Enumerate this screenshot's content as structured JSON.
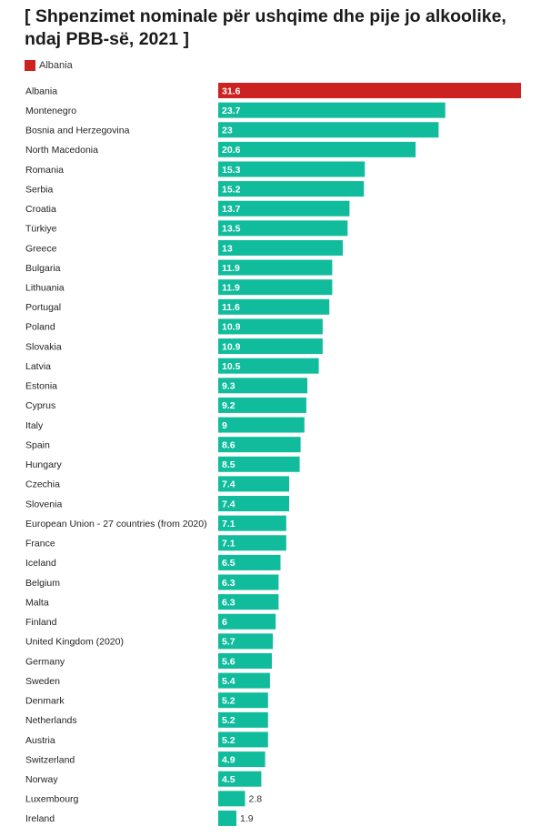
{
  "title": "[ Shpenzimet nominale për ushqime dhe pije jo alkoolike, ndaj PBB-së, 2021 ]",
  "legend": {
    "label": "Albania",
    "color": "#cc2222"
  },
  "colors": {
    "highlight": "#cc2222",
    "default": "#10bc9c"
  },
  "chart_data": {
    "type": "bar",
    "orientation": "horizontal",
    "title": "[ Shpenzimet nominale për ushqime dhe pije jo alkoolike, ndaj PBB-së, 2021 ]",
    "xlim": [
      0,
      31.6
    ],
    "highlight": "Albania",
    "legend_placement": "top-left",
    "grid": false,
    "categories": [
      "Albania",
      "Montenegro",
      "Bosnia and Herzegovina",
      "North Macedonia",
      "Romania",
      "Serbia",
      "Croatia",
      "Türkiye",
      "Greece",
      "Bulgaria",
      "Lithuania",
      "Portugal",
      "Poland",
      "Slovakia",
      "Latvia",
      "Estonia",
      "Cyprus",
      "Italy",
      "Spain",
      "Hungary",
      "Czechia",
      "Slovenia",
      "European Union - 27 countries (from 2020)",
      "France",
      "Iceland",
      "Belgium",
      "Malta",
      "Finland",
      "United Kingdom (2020)",
      "Germany",
      "Sweden",
      "Denmark",
      "Netherlands",
      "Austria",
      "Switzerland",
      "Norway",
      "Luxembourg",
      "Ireland"
    ],
    "values": [
      31.6,
      23.7,
      23,
      20.6,
      15.3,
      15.2,
      13.7,
      13.5,
      13,
      11.9,
      11.9,
      11.6,
      10.9,
      10.9,
      10.5,
      9.3,
      9.2,
      9,
      8.6,
      8.5,
      7.4,
      7.4,
      7.1,
      7.1,
      6.5,
      6.3,
      6.3,
      6,
      5.7,
      5.6,
      5.4,
      5.2,
      5.2,
      5.2,
      4.9,
      4.5,
      2.8,
      1.9
    ]
  }
}
